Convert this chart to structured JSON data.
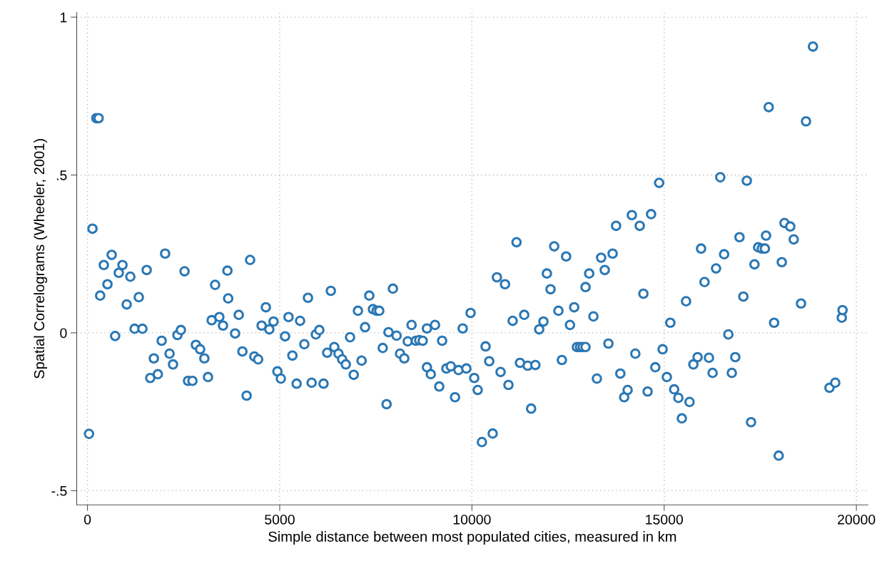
{
  "chart_data": {
    "type": "scatter",
    "xlabel": "Simple distance between most populated cities, measured in km",
    "ylabel": "Spatial Correlograms (Wheeler, 2001)",
    "xlim": [
      -280,
      20300
    ],
    "ylim": [
      -0.545,
      1.015
    ],
    "xticks": [
      0,
      5000,
      10000,
      15000,
      20000
    ],
    "yticks": [
      {
        "value": -0.5,
        "label": "-.5"
      },
      {
        "value": 0,
        "label": "0"
      },
      {
        "value": 0.5,
        "label": ".5"
      },
      {
        "value": 1,
        "label": "1"
      }
    ],
    "grid": true,
    "marker": "circle",
    "series": [
      {
        "color": "#2a77b4",
        "x": [
          40,
          130,
          230,
          290,
          330,
          425,
          520,
          630,
          720,
          815,
          910,
          1020,
          1115,
          1225,
          1335,
          1430,
          1540,
          1633,
          1726,
          1830,
          1930,
          2020,
          2135,
          2225,
          2340,
          2430,
          2525,
          2615,
          2730,
          2820,
          2930,
          3040,
          3135,
          3230,
          3320,
          3430,
          3525,
          3640,
          3660,
          3840,
          3935,
          4030,
          4140,
          4230,
          4340,
          4440,
          4530,
          4640,
          4730,
          4840,
          4940,
          5030,
          5140,
          5230,
          5330,
          5440,
          5530,
          5640,
          5735,
          5830,
          5940,
          6030,
          6140,
          6235,
          6330,
          6420,
          6530,
          6625,
          6720,
          6830,
          6925,
          7035,
          7130,
          7220,
          7330,
          7425,
          7520,
          7590,
          7680,
          7780,
          7830,
          7945,
          8040,
          8130,
          8240,
          8330,
          8430,
          8540,
          8630,
          8720,
          8830,
          8830,
          8930,
          9040,
          9150,
          9225,
          9335,
          9450,
          9560,
          9650,
          9760,
          9855,
          9965,
          10060,
          10150,
          10260,
          10355,
          10450,
          10540,
          10650,
          10745,
          10860,
          10950,
          11060,
          11160,
          11250,
          11360,
          11450,
          11540,
          11650,
          11750,
          11860,
          11950,
          12045,
          12140,
          12250,
          12340,
          12450,
          12550,
          12660,
          12730,
          12810,
          12880,
          12955,
          12955,
          13050,
          13160,
          13250,
          13360,
          13455,
          13550,
          13660,
          13750,
          13860,
          13960,
          14050,
          14160,
          14250,
          14365,
          14460,
          14570,
          14660,
          14770,
          14870,
          14960,
          15070,
          15160,
          15260,
          15370,
          15460,
          15570,
          15660,
          15760,
          15870,
          15960,
          16050,
          16165,
          16260,
          16350,
          16460,
          16560,
          16670,
          16760,
          16850,
          16960,
          17060,
          17150,
          17260,
          17350,
          17445,
          17540,
          17620,
          17650,
          17720,
          17860,
          17980,
          18060,
          18130,
          18280,
          18370,
          18560,
          18690,
          18870,
          19300,
          19450,
          19620,
          19640
        ],
        "values": [
          -0.32,
          0.33,
          0.68,
          0.68,
          0.118,
          0.215,
          0.154,
          0.247,
          -0.01,
          0.19,
          0.215,
          0.09,
          0.178,
          0.013,
          0.113,
          0.013,
          0.199,
          -0.143,
          -0.081,
          -0.131,
          -0.025,
          0.251,
          -0.066,
          -0.1,
          -0.007,
          0.009,
          0.195,
          -0.152,
          -0.152,
          -0.038,
          -0.052,
          -0.081,
          -0.14,
          0.04,
          0.152,
          0.05,
          0.023,
          0.197,
          0.109,
          -0.002,
          0.057,
          -0.059,
          -0.199,
          0.231,
          -0.075,
          -0.084,
          0.023,
          0.081,
          0.011,
          0.036,
          -0.122,
          -0.145,
          -0.011,
          0.05,
          -0.072,
          -0.161,
          0.038,
          -0.036,
          0.111,
          -0.158,
          -0.005,
          0.009,
          -0.161,
          -0.063,
          0.133,
          -0.045,
          -0.066,
          -0.084,
          -0.1,
          -0.014,
          -0.133,
          0.07,
          -0.088,
          0.018,
          0.118,
          0.075,
          0.07,
          0.07,
          -0.048,
          -0.226,
          0.002,
          0.14,
          -0.009,
          -0.066,
          -0.081,
          -0.027,
          0.025,
          -0.025,
          -0.023,
          -0.025,
          0.014,
          -0.109,
          -0.131,
          0.025,
          -0.17,
          -0.025,
          -0.113,
          -0.106,
          -0.204,
          -0.118,
          0.014,
          -0.113,
          0.063,
          -0.143,
          -0.181,
          -0.346,
          -0.043,
          -0.09,
          -0.319,
          0.176,
          -0.124,
          0.154,
          -0.165,
          0.038,
          0.287,
          -0.095,
          0.057,
          -0.104,
          -0.24,
          -0.102,
          0.011,
          0.036,
          0.188,
          0.138,
          0.274,
          0.07,
          -0.086,
          0.242,
          0.025,
          0.081,
          -0.045,
          -0.045,
          -0.045,
          -0.045,
          0.145,
          0.188,
          0.052,
          -0.145,
          0.238,
          0.199,
          -0.034,
          0.251,
          0.339,
          -0.129,
          -0.204,
          -0.181,
          0.373,
          -0.066,
          0.339,
          0.124,
          -0.186,
          0.376,
          -0.109,
          0.475,
          -0.052,
          -0.14,
          0.032,
          -0.179,
          -0.206,
          -0.271,
          0.1,
          -0.219,
          -0.1,
          -0.077,
          0.267,
          0.161,
          -0.079,
          -0.127,
          0.204,
          0.493,
          0.249,
          -0.005,
          -0.127,
          -0.077,
          0.303,
          0.115,
          0.482,
          -0.283,
          0.217,
          0.271,
          0.267,
          0.267,
          0.308,
          0.715,
          0.032,
          -0.389,
          0.224,
          0.348,
          0.337,
          0.296,
          0.093,
          0.67,
          0.907,
          -0.174,
          -0.158,
          0.048,
          0.072
        ]
      }
    ]
  }
}
